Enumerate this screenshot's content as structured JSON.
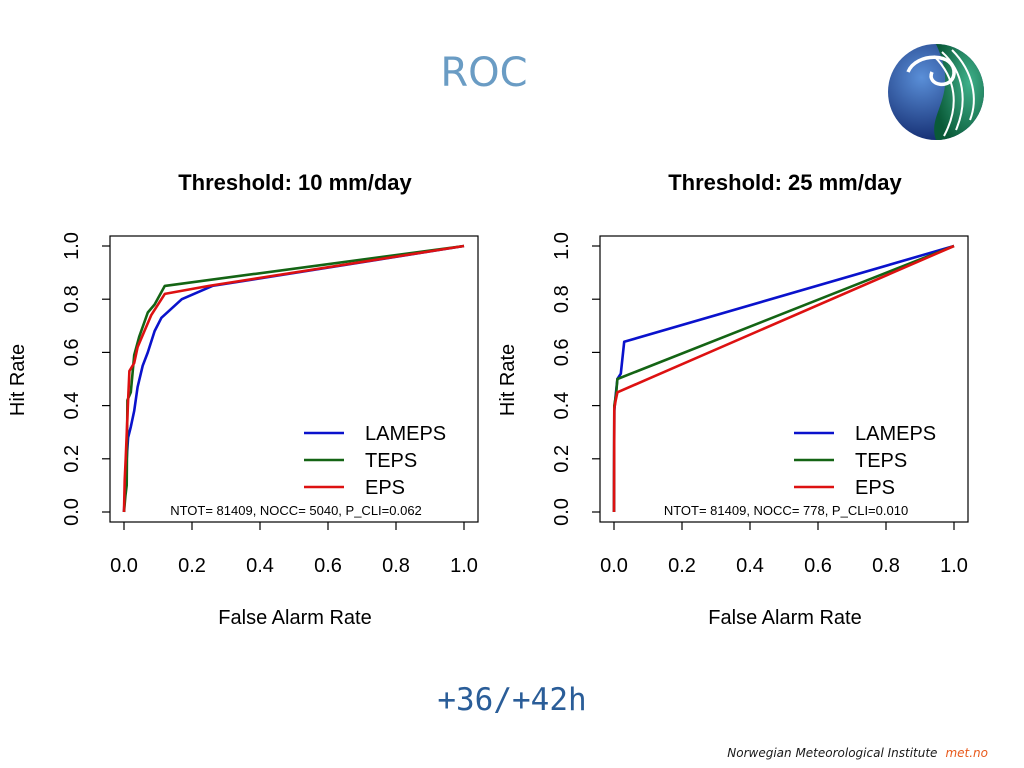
{
  "slide": {
    "title": "ROC",
    "lead_time": "+36/+42h",
    "footer_org": "Norwegian Meteorological Institute",
    "footer_brand": "met.no"
  },
  "colors": {
    "LAMEPS": "#0a12cc",
    "TEPS": "#146414",
    "EPS": "#dd1111",
    "title": "#6a9cc4",
    "lead": "#2a5d98",
    "brand": "#e85a1c"
  },
  "chart_data": [
    {
      "type": "line",
      "title": "Threshold: 10 mm/day",
      "xlabel": "False Alarm Rate",
      "ylabel": "Hit Rate",
      "xlim": [
        0,
        1
      ],
      "ylim": [
        0,
        1
      ],
      "xticks": [
        "0.0",
        "0.2",
        "0.4",
        "0.6",
        "0.8",
        "1.0"
      ],
      "yticks": [
        "0.0",
        "0.2",
        "0.4",
        "0.6",
        "0.8",
        "1.0"
      ],
      "legend_position": "bottom-right",
      "annotation": "NTOT= 81409,   NOCC= 5040,   P_CLI=0.062",
      "series": [
        {
          "name": "LAMEPS",
          "points": [
            [
              0,
              0
            ],
            [
              0.003,
              0.08
            ],
            [
              0.008,
              0.2
            ],
            [
              0.012,
              0.28
            ],
            [
              0.02,
              0.32
            ],
            [
              0.03,
              0.38
            ],
            [
              0.04,
              0.47
            ],
            [
              0.055,
              0.55
            ],
            [
              0.07,
              0.6
            ],
            [
              0.09,
              0.68
            ],
            [
              0.11,
              0.73
            ],
            [
              0.17,
              0.8
            ],
            [
              0.26,
              0.85
            ],
            [
              1,
              1
            ]
          ]
        },
        {
          "name": "TEPS",
          "points": [
            [
              0,
              0
            ],
            [
              0.004,
              0.06
            ],
            [
              0.008,
              0.1
            ],
            [
              0.01,
              0.42
            ],
            [
              0.02,
              0.45
            ],
            [
              0.03,
              0.59
            ],
            [
              0.045,
              0.66
            ],
            [
              0.07,
              0.75
            ],
            [
              0.09,
              0.78
            ],
            [
              0.12,
              0.85
            ],
            [
              1,
              1
            ]
          ]
        },
        {
          "name": "EPS",
          "points": [
            [
              0,
              0
            ],
            [
              0.002,
              0.12
            ],
            [
              0.005,
              0.2
            ],
            [
              0.012,
              0.42
            ],
            [
              0.016,
              0.53
            ],
            [
              0.03,
              0.56
            ],
            [
              0.04,
              0.62
            ],
            [
              0.06,
              0.68
            ],
            [
              0.08,
              0.74
            ],
            [
              0.12,
              0.82
            ],
            [
              0.25,
              0.85
            ],
            [
              1,
              1
            ]
          ]
        }
      ]
    },
    {
      "type": "line",
      "title": "Threshold: 25 mm/day",
      "xlabel": "False Alarm Rate",
      "ylabel": "Hit Rate",
      "xlim": [
        0,
        1
      ],
      "ylim": [
        0,
        1
      ],
      "xticks": [
        "0.0",
        "0.2",
        "0.4",
        "0.6",
        "0.8",
        "1.0"
      ],
      "yticks": [
        "0.0",
        "0.2",
        "0.4",
        "0.6",
        "0.8",
        "1.0"
      ],
      "legend_position": "bottom-right",
      "annotation": "NTOT= 81409,   NOCC= 778,  P_CLI=0.010",
      "series": [
        {
          "name": "LAMEPS",
          "points": [
            [
              0,
              0
            ],
            [
              0.001,
              0.38
            ],
            [
              0.005,
              0.44
            ],
            [
              0.01,
              0.5
            ],
            [
              0.02,
              0.52
            ],
            [
              0.03,
              0.64
            ],
            [
              1,
              1
            ]
          ]
        },
        {
          "name": "TEPS",
          "points": [
            [
              0,
              0
            ],
            [
              0.001,
              0.4
            ],
            [
              0.006,
              0.44
            ],
            [
              0.01,
              0.5
            ],
            [
              1,
              1
            ]
          ]
        },
        {
          "name": "EPS",
          "points": [
            [
              0,
              0
            ],
            [
              0.001,
              0.39
            ],
            [
              0.005,
              0.42
            ],
            [
              0.01,
              0.45
            ],
            [
              1,
              1
            ]
          ]
        }
      ]
    }
  ]
}
